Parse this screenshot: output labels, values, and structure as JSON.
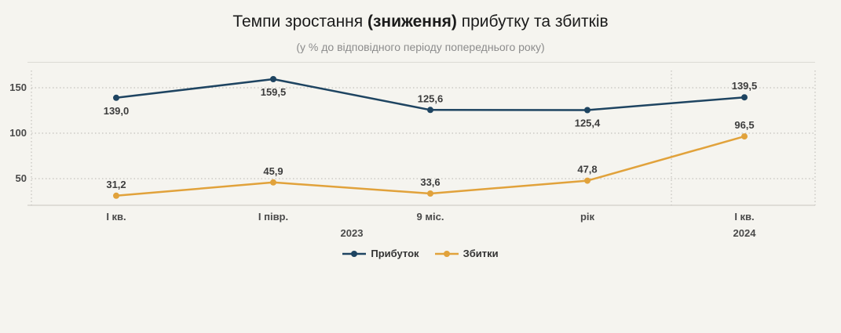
{
  "chart_data": {
    "type": "line",
    "title": "Темпи зростання (зниження) прибутку та збитків",
    "title_parts": {
      "pre": "Темпи зростання ",
      "bold": "(зниження)",
      "post": " прибутку та збитків"
    },
    "subtitle": "(у % до відповідного періоду попереднього року)",
    "categories": [
      "І кв.",
      "І півр.",
      "9 міс.",
      "рік",
      "І кв."
    ],
    "year_groups": [
      {
        "label": "2023",
        "span": [
          0,
          3
        ]
      },
      {
        "label": "2024",
        "span": [
          4,
          4
        ]
      }
    ],
    "yticks": [
      50,
      100,
      150
    ],
    "ylim": [
      20,
      170
    ],
    "grid": "dotted-horizontal",
    "legend_position": "bottom",
    "series": [
      {
        "name": "Прибуток",
        "color": "#1e4461",
        "values": [
          139.0,
          159.5,
          125.6,
          125.4,
          139.5
        ],
        "labels": [
          "139,0",
          "159,5",
          "125,6",
          "125,4",
          "139,5"
        ],
        "label_positions": [
          "below",
          "below",
          "above",
          "below",
          "above"
        ]
      },
      {
        "name": "Збитки",
        "color": "#e1a23b",
        "values": [
          31.2,
          45.9,
          33.6,
          47.8,
          96.5
        ],
        "labels": [
          "31,2",
          "45,9",
          "33,6",
          "47,8",
          "96,5"
        ],
        "label_positions": [
          "above",
          "above",
          "above",
          "above",
          "above"
        ]
      }
    ]
  }
}
